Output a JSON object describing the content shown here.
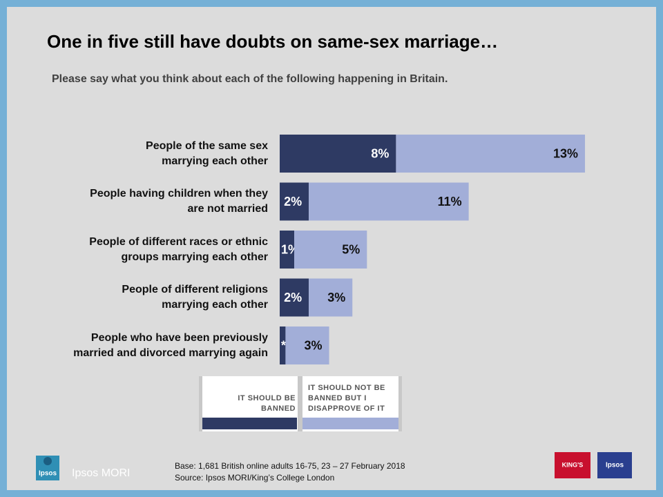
{
  "chart_data": {
    "type": "bar",
    "orientation": "horizontal",
    "stacked": true,
    "title": "One in five still have doubts on same-sex marriage…",
    "subtitle": "Please say what you think about each of the following happening in Britain.",
    "categories": [
      "People of the same sex\nmarrying each other",
      "People having children when they\nare not married",
      "People of different races or ethnic\ngroups marrying each other",
      "People of different religions\nmarrying each other",
      "People who have been previously\nmarried and divorced marrying again"
    ],
    "series": [
      {
        "name": "IT SHOULD BE\nBANNED",
        "color": "#2e3a63",
        "label_color": "#ffffff",
        "values": [
          8,
          2,
          1,
          2,
          0.4
        ],
        "value_labels": [
          "8%",
          "2%",
          "1%",
          "2%",
          "*"
        ]
      },
      {
        "name": "IT SHOULD NOT BE\nBANNED BUT I\nDISAPPROVE OF IT",
        "color": "#a2aed8",
        "label_color": "#111111",
        "values": [
          13,
          11,
          5,
          3,
          3
        ],
        "value_labels": [
          "13%",
          "11%",
          "5%",
          "3%",
          "3%"
        ]
      }
    ]
  },
  "footer": {
    "base": "Base: 1,681 British online adults 16-75, 23 – 27 February 2018",
    "source": "Source: Ipsos MORI/King’s College London",
    "brand": "Ipsos MORI",
    "logo_left": "Ipsos",
    "logo_kings": "KING'S",
    "logo_right": "Ipsos"
  }
}
